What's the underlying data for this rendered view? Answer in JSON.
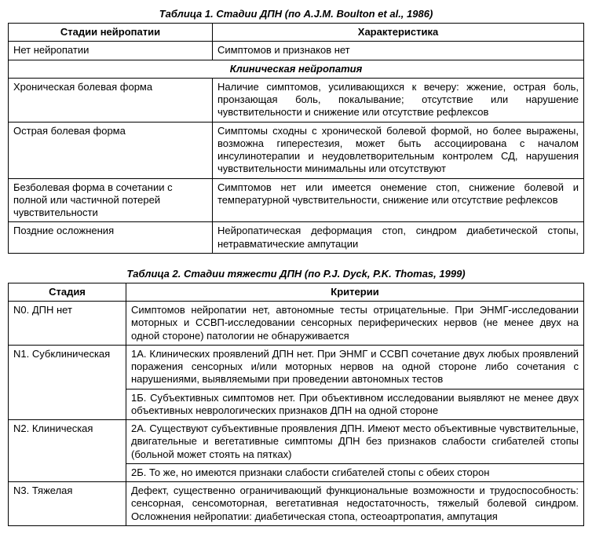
{
  "table1": {
    "caption": "Таблица 1. Стадии ДПН (по A.J.M. Boulton et al., 1986)",
    "headers": [
      "Стадии нейропатии",
      "Характеристика"
    ],
    "rows": [
      {
        "c0": "Нет нейропатии",
        "c1": "Симптомов и признаков нет"
      }
    ],
    "section": "Клиническая нейропатия",
    "rows2": [
      {
        "c0": "Хроническая болевая форма",
        "c1": "Наличие симптомов, усиливающихся к вечеру: жжение, острая боль, пронзающая боль, покалывание; отсутствие или нарушение чувствительности и снижение или отсутствие рефлексов"
      },
      {
        "c0": "Острая болевая форма",
        "c1": "Симптомы сходны с хронической болевой формой, но более выражены, возможна гиперестезия, может быть ассоциирована с началом инсулинотерапии и неудовлетворительным контролем СД, нарушения чувствительности минимальны или отсутствуют"
      },
      {
        "c0": "Безболевая форма в сочетании с полной или частичной потерей чувствительности",
        "c1": "Симптомов нет или имеется онемение стоп, снижение болевой и температурной чувствительности, снижение или отсутствие рефлексов"
      },
      {
        "c0": "Поздние осложнения",
        "c1": "Нейропатическая деформация стоп, синдром диабетической стопы, нетравматические ампутации"
      }
    ]
  },
  "table2": {
    "caption": "Таблица 2. Стадии тяжести ДПН (по P.J. Dyck, P.K. Thomas, 1999)",
    "headers": [
      "Стадия",
      "Критерии"
    ],
    "rows": [
      {
        "c0": "N0. ДПН нет",
        "c1": "Симптомов нейропатии нет, автономные тесты отрицательные. При ЭНМГ-исследовании моторных и ССВП-исследовании сенсорных периферических нервов (не менее двух на одной стороне) патологии не обнаруживается",
        "rowspan": 1
      },
      {
        "c0": "N1. Субклиническая",
        "rowspan": 2,
        "cells": [
          "1А. Клинических проявлений ДПН нет. При ЭНМГ и ССВП сочетание двух любых проявлений поражения сенсорных и/или моторных нервов на одной стороне либо сочетания с нарушениями, выявляемыми при проведении автономных тестов",
          "1Б. Субъективных симптомов нет. При объективном исследовании выявляют не менее двух объективных неврологических признаков ДПН на одной стороне"
        ]
      },
      {
        "c0": "N2. Клиническая",
        "rowspan": 2,
        "cells": [
          "2А. Существуют субъективные проявления ДПН. Имеют место объективные чувствительные, двигательные и вегетативные симптомы ДПН без признаков слабости сгибателей стопы (больной может стоять на пятках)",
          "2Б. То же, но имеются признаки слабости сгибателей стопы с обеих сторон"
        ]
      },
      {
        "c0": "N3. Тяжелая",
        "c1": "Дефект, существенно ограничивающий функциональные возможности и трудоспособность: сенсорная, сенсомоторная, вегетативная недостаточность, тяжелый болевой синдром. Осложнения нейропатии: диабетическая стопа, остеоартропатия, ампутация",
        "rowspan": 1
      }
    ]
  }
}
